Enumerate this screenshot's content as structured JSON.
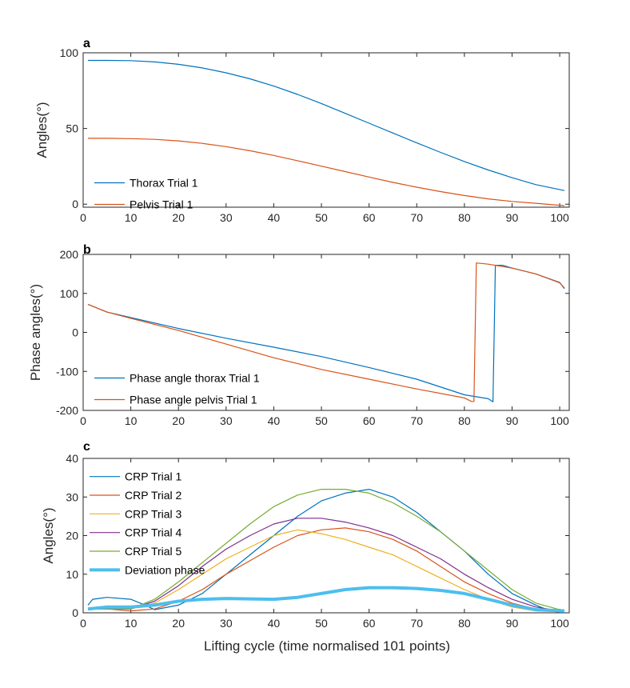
{
  "figure": {
    "xlabel": "Lifting cycle (time normalised 101 points)",
    "colors": {
      "blue": "#0072BD",
      "orange": "#D95319",
      "yellow": "#EDB120",
      "purple": "#7E2F8E",
      "green": "#77AC30",
      "cyan": "#4DBEEE",
      "axis": "#262626"
    }
  },
  "chart_data": [
    {
      "panel": "a",
      "type": "line",
      "ylabel": "Angles(°)",
      "xlim": [
        0,
        102
      ],
      "ylim": [
        -2,
        100
      ],
      "xticks": [
        0,
        10,
        20,
        30,
        40,
        50,
        60,
        70,
        80,
        90,
        100
      ],
      "yticks": [
        0,
        50,
        100
      ],
      "legend": "bottom-left",
      "series": [
        {
          "name": "Thorax Trial 1",
          "color": "#0072BD",
          "width": 1.2,
          "x": [
            1,
            5,
            10,
            15,
            20,
            25,
            30,
            35,
            40,
            45,
            50,
            55,
            60,
            65,
            70,
            75,
            80,
            85,
            90,
            95,
            101
          ],
          "values": [
            95,
            95,
            94.8,
            94,
            92.4,
            90,
            86.8,
            82.8,
            78,
            72.5,
            66.5,
            60,
            53.5,
            47,
            40.5,
            34.2,
            28.2,
            22.6,
            17.5,
            12.9,
            9
          ]
        },
        {
          "name": "Pelvis Trial 1",
          "color": "#D95319",
          "width": 1.2,
          "x": [
            1,
            5,
            10,
            15,
            20,
            25,
            30,
            35,
            40,
            45,
            50,
            55,
            60,
            65,
            70,
            75,
            80,
            85,
            90,
            95,
            101
          ],
          "values": [
            43.5,
            43.5,
            43.3,
            42.8,
            41.8,
            40.2,
            38,
            35.3,
            32.2,
            28.7,
            25.1,
            21.5,
            17.9,
            14.4,
            11.2,
            8.3,
            5.7,
            3.5,
            1.8,
            0.6,
            -1
          ]
        }
      ]
    },
    {
      "panel": "b",
      "type": "line",
      "ylabel": "Phase angles(°)",
      "xlim": [
        0,
        102
      ],
      "ylim": [
        -200,
        200
      ],
      "xticks": [
        0,
        10,
        20,
        30,
        40,
        50,
        60,
        70,
        80,
        90,
        100
      ],
      "yticks": [
        -200,
        -100,
        0,
        100,
        200
      ],
      "legend": "bottom-left",
      "series": [
        {
          "name": "Phase angle thorax Trial 1",
          "color": "#0072BD",
          "width": 1.2,
          "x": [
            1,
            5,
            10,
            20,
            30,
            40,
            50,
            60,
            70,
            80,
            85,
            86,
            86.5,
            88,
            90,
            95,
            100,
            101
          ],
          "values": [
            72,
            52,
            38,
            10,
            -15,
            -38,
            -62,
            -90,
            -120,
            -160,
            -170,
            -178,
            172,
            172,
            165,
            150,
            128,
            112
          ]
        },
        {
          "name": "Phase angle pelvis Trial 1",
          "color": "#D95319",
          "width": 1.2,
          "x": [
            1,
            5,
            10,
            20,
            30,
            40,
            50,
            60,
            70,
            80,
            81.5,
            82,
            82.5,
            85,
            90,
            95,
            100,
            101
          ],
          "values": [
            72,
            52,
            36,
            5,
            -30,
            -65,
            -95,
            -120,
            -145,
            -168,
            -177,
            -177,
            178,
            175,
            165,
            150,
            127,
            114
          ]
        }
      ]
    },
    {
      "panel": "c",
      "type": "line",
      "ylabel": "Angles(°)",
      "xlim": [
        0,
        102
      ],
      "ylim": [
        0,
        40
      ],
      "xticks": [
        0,
        10,
        20,
        30,
        40,
        50,
        60,
        70,
        80,
        90,
        100
      ],
      "yticks": [
        0,
        10,
        20,
        30,
        40
      ],
      "legend": "top-left",
      "series": [
        {
          "name": "CRP Trial 1",
          "color": "#0072BD",
          "width": 1.2,
          "x": [
            1,
            2,
            5,
            10,
            13,
            15,
            20,
            25,
            30,
            35,
            40,
            45,
            50,
            55,
            60,
            65,
            70,
            75,
            80,
            85,
            90,
            95,
            98,
            101
          ],
          "values": [
            2,
            3.5,
            4,
            3.5,
            2,
            0.8,
            2,
            5,
            10,
            15,
            20,
            25,
            29,
            31,
            32,
            30,
            26,
            21,
            16,
            10,
            5,
            2,
            0.5,
            0
          ]
        },
        {
          "name": "CRP Trial 2",
          "color": "#D95319",
          "width": 1.2,
          "x": [
            1,
            5,
            10,
            15,
            20,
            25,
            30,
            35,
            40,
            45,
            50,
            55,
            60,
            65,
            70,
            75,
            80,
            85,
            90,
            95,
            100
          ],
          "values": [
            1,
            1,
            0.5,
            1,
            3,
            6,
            10,
            13.5,
            17,
            20,
            21.5,
            22,
            21,
            19,
            16,
            12,
            8,
            5,
            2.5,
            1,
            0.5
          ]
        },
        {
          "name": "CRP Trial 3",
          "color": "#EDB120",
          "width": 1.2,
          "x": [
            1,
            5,
            10,
            15,
            20,
            25,
            30,
            35,
            40,
            45,
            50,
            55,
            60,
            65,
            70,
            75,
            80,
            85,
            90,
            95,
            100
          ],
          "values": [
            1,
            1,
            1,
            2.5,
            6,
            10,
            14,
            17,
            20,
            21.5,
            20.5,
            19,
            17,
            15,
            12,
            9,
            6,
            3.5,
            1.5,
            0.5,
            0.3
          ]
        },
        {
          "name": "CRP Trial 4",
          "color": "#7E2F8E",
          "width": 1.2,
          "x": [
            1,
            5,
            10,
            15,
            20,
            25,
            30,
            35,
            40,
            45,
            50,
            55,
            60,
            65,
            70,
            75,
            80,
            85,
            90,
            95,
            100
          ],
          "values": [
            1,
            1,
            1,
            3,
            7,
            12,
            16.5,
            20,
            23,
            24.5,
            24.5,
            23.5,
            22,
            20,
            17,
            14,
            10,
            6.5,
            3.5,
            1.5,
            0.5
          ]
        },
        {
          "name": "CRP Trial 5",
          "color": "#77AC30",
          "width": 1.2,
          "x": [
            1,
            5,
            10,
            15,
            20,
            25,
            30,
            35,
            40,
            45,
            50,
            55,
            60,
            65,
            70,
            75,
            80,
            85,
            90,
            95,
            100
          ],
          "values": [
            1,
            1,
            1,
            3.5,
            8,
            13,
            18,
            23,
            27.5,
            30.5,
            32,
            32,
            31,
            28.5,
            25,
            21,
            16,
            11,
            6,
            2.5,
            0.8
          ]
        },
        {
          "name": "Deviation phase",
          "color": "#4DBEEE",
          "width": 4,
          "x": [
            1,
            5,
            10,
            15,
            20,
            25,
            30,
            35,
            40,
            45,
            50,
            55,
            60,
            65,
            70,
            75,
            80,
            85,
            90,
            95,
            101
          ],
          "values": [
            1,
            1.5,
            1.5,
            2,
            3,
            3.5,
            3.7,
            3.6,
            3.5,
            4,
            5,
            6,
            6.5,
            6.5,
            6.3,
            5.8,
            5,
            3.5,
            2,
            0.8,
            0.5
          ]
        }
      ]
    }
  ]
}
